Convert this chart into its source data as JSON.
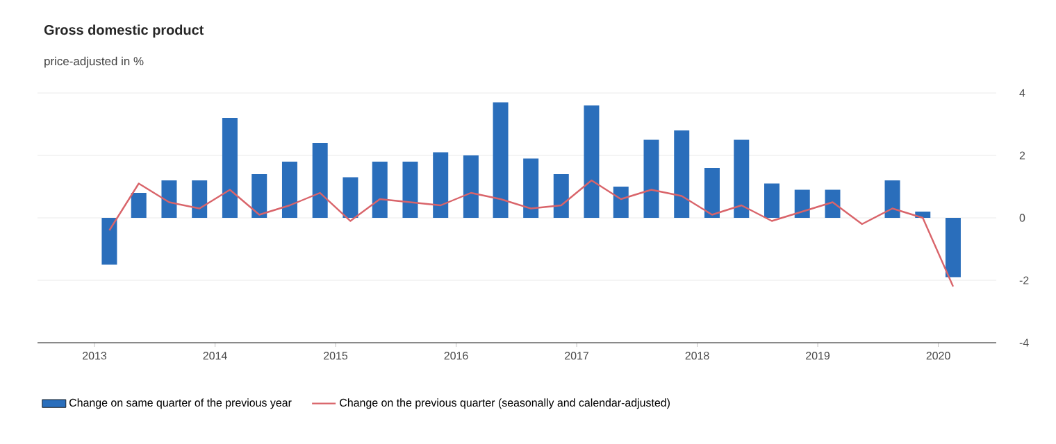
{
  "chart_data": {
    "type": "bar",
    "title": "Gross domestic product",
    "subtitle": "price-adjusted in %",
    "x": [
      "2013-02-15",
      "2013-05-15",
      "2013-08-15",
      "2013-11-15",
      "2014-02-15",
      "2014-05-15",
      "2014-08-15",
      "2014-11-15",
      "2015-02-15",
      "2015-05-15",
      "2015-08-15",
      "2015-11-15",
      "2016-02-15",
      "2016-05-15",
      "2016-08-15",
      "2016-11-15",
      "2017-02-15",
      "2017-05-15",
      "2017-08-15",
      "2017-11-15",
      "2018-02-15",
      "2018-05-15",
      "2018-08-15",
      "2018-11-15",
      "2019-02-15",
      "2019-05-15",
      "2019-08-15",
      "2019-11-15",
      "2020-02-15"
    ],
    "series": [
      {
        "name": "Change on same quarter of the previous year",
        "color": "#2a6ebb",
        "values": [
          -1.5,
          0.8,
          1.2,
          1.2,
          3.2,
          1.4,
          1.8,
          2.4,
          1.3,
          1.8,
          1.8,
          2.1,
          2.0,
          3.7,
          1.9,
          1.4,
          3.6,
          1.0,
          2.5,
          2.8,
          1.6,
          2.5,
          1.1,
          0.9,
          0.9,
          0.0,
          1.2,
          0.2,
          -1.9
        ]
      },
      {
        "name": "Change on the previous quarter (seasonally and calendar-adjusted)",
        "type": "line",
        "color": "#d9646a",
        "values": [
          -0.4,
          1.1,
          0.5,
          0.3,
          0.9,
          0.1,
          0.4,
          0.8,
          -0.1,
          0.6,
          0.5,
          0.4,
          0.8,
          0.6,
          0.3,
          0.4,
          1.2,
          0.6,
          0.9,
          0.7,
          0.1,
          0.4,
          -0.1,
          0.2,
          0.5,
          -0.2,
          0.3,
          0.0,
          -2.2
        ]
      }
    ],
    "xlim": [
      "2012-07-12",
      "2020-06-25"
    ],
    "xticks": [
      {
        "value": "2013-01-01",
        "label": "2013"
      },
      {
        "value": "2014-01-01",
        "label": "2014"
      },
      {
        "value": "2015-01-01",
        "label": "2015"
      },
      {
        "value": "2016-01-01",
        "label": "2016"
      },
      {
        "value": "2017-01-01",
        "label": "2017"
      },
      {
        "value": "2018-01-01",
        "label": "2018"
      },
      {
        "value": "2019-01-01",
        "label": "2019"
      },
      {
        "value": "2020-01-01",
        "label": "2020"
      }
    ],
    "ylim": [
      -4,
      4
    ],
    "yticks": [
      -4,
      -2,
      0,
      2,
      4
    ],
    "grid": "y",
    "legend": "bottom left",
    "marker": "none",
    "line_style": "solid"
  }
}
